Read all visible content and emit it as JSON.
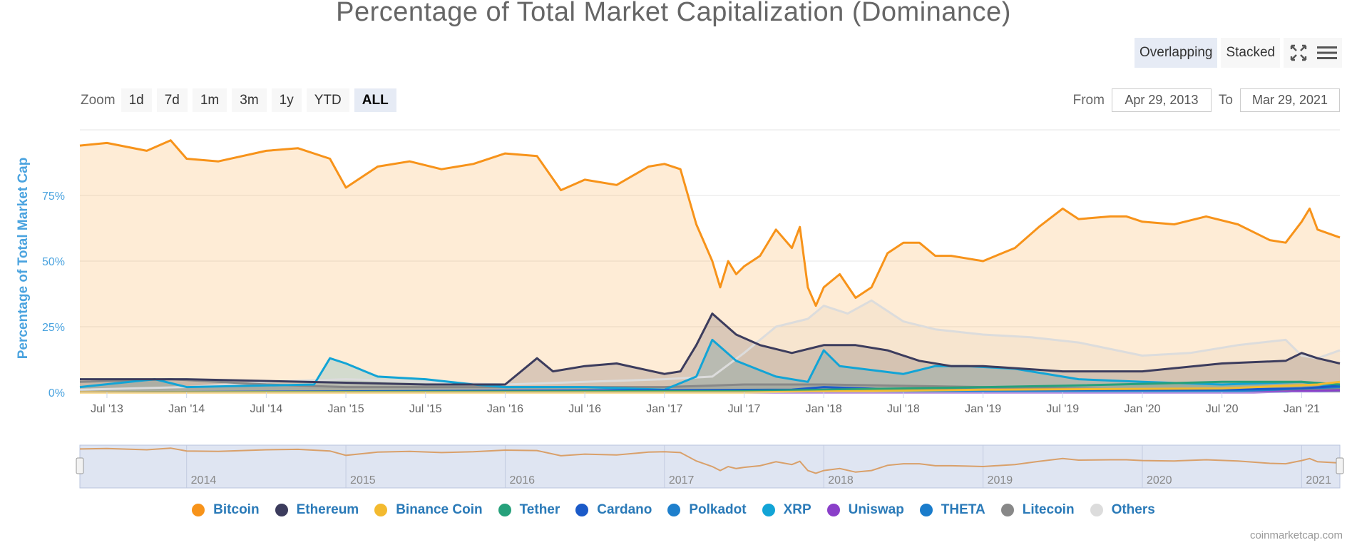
{
  "chart_data": {
    "type": "area",
    "title": "Percentage of Total Market Capitalization (Dominance)",
    "ylabel": "Percentage of Total Market Cap",
    "xlabel": "",
    "ylim": [
      0,
      100
    ],
    "yticks": [
      "0%",
      "25%",
      "50%",
      "75%"
    ],
    "xticks": [
      "Jul '13",
      "Jan '14",
      "Jul '14",
      "Jan '15",
      "Jul '15",
      "Jan '16",
      "Jul '16",
      "Jan '17",
      "Jul '17",
      "Jan '18",
      "Jul '18",
      "Jan '19",
      "Jul '19",
      "Jan '20",
      "Jul '20",
      "Jan '21"
    ],
    "x_range": [
      "Apr 29, 2013",
      "Mar 29, 2021"
    ],
    "series": [
      {
        "name": "Bitcoin",
        "color": "#f7931a",
        "x": [
          2013.33,
          2013.5,
          2013.75,
          2013.9,
          2014.0,
          2014.2,
          2014.5,
          2014.7,
          2014.9,
          2015.0,
          2015.2,
          2015.4,
          2015.6,
          2015.8,
          2016.0,
          2016.2,
          2016.35,
          2016.5,
          2016.7,
          2016.9,
          2017.0,
          2017.1,
          2017.2,
          2017.3,
          2017.35,
          2017.4,
          2017.45,
          2017.5,
          2017.6,
          2017.7,
          2017.8,
          2017.85,
          2017.9,
          2017.95,
          2018.0,
          2018.1,
          2018.2,
          2018.3,
          2018.4,
          2018.5,
          2018.6,
          2018.7,
          2018.8,
          2018.9,
          2019.0,
          2019.2,
          2019.35,
          2019.5,
          2019.6,
          2019.8,
          2019.9,
          2020.0,
          2020.2,
          2020.4,
          2020.6,
          2020.8,
          2020.9,
          2021.0,
          2021.05,
          2021.1,
          2021.24
        ],
        "y": [
          94,
          95,
          92,
          96,
          89,
          88,
          92,
          93,
          89,
          78,
          86,
          88,
          85,
          87,
          91,
          90,
          77,
          81,
          79,
          86,
          87,
          85,
          64,
          50,
          40,
          50,
          45,
          48,
          52,
          62,
          55,
          63,
          40,
          33,
          40,
          45,
          36,
          40,
          53,
          57,
          57,
          52,
          52,
          51,
          50,
          55,
          63,
          70,
          66,
          67,
          67,
          65,
          64,
          67,
          64,
          58,
          57,
          65,
          70,
          62,
          59
        ]
      },
      {
        "name": "Ethereum",
        "color": "#3c3c5d",
        "x": [
          2013.33,
          2014.0,
          2015.5,
          2016.0,
          2016.2,
          2016.3,
          2016.5,
          2016.7,
          2017.0,
          2017.1,
          2017.2,
          2017.3,
          2017.45,
          2017.6,
          2017.8,
          2018.0,
          2018.2,
          2018.4,
          2018.6,
          2018.8,
          2019.0,
          2019.5,
          2020.0,
          2020.5,
          2020.9,
          2021.0,
          2021.1,
          2021.24
        ],
        "y": [
          5,
          5,
          3,
          3,
          13,
          8,
          10,
          11,
          7,
          8,
          18,
          30,
          22,
          18,
          15,
          18,
          18,
          16,
          12,
          10,
          10,
          8,
          8,
          11,
          12,
          15,
          13,
          11
        ]
      },
      {
        "name": "Binance Coin",
        "color": "#f3ba2f",
        "x": [
          2013.33,
          2017.5,
          2019.0,
          2020.5,
          2021.1,
          2021.24
        ],
        "y": [
          0,
          0,
          1,
          1.5,
          3,
          4
        ]
      },
      {
        "name": "Tether",
        "color": "#26a17b",
        "x": [
          2013.33,
          2017.5,
          2018.5,
          2019.5,
          2020.5,
          2021.0,
          2021.24
        ],
        "y": [
          0,
          0.5,
          1.5,
          2.5,
          4,
          4,
          3
        ]
      },
      {
        "name": "Cardano",
        "color": "#1b5ac8",
        "x": [
          2013.33,
          2017.8,
          2018.0,
          2018.5,
          2020.5,
          2021.0,
          2021.24
        ],
        "y": [
          0,
          1,
          2,
          1,
          1,
          1.5,
          2.5
        ]
      },
      {
        "name": "Polkadot",
        "color": "#1e7fcc",
        "x": [
          2013.33,
          2020.6,
          2021.0,
          2021.24
        ],
        "y": [
          0,
          0.5,
          1.5,
          2
        ]
      },
      {
        "name": "XRP",
        "color": "#12a4d6",
        "x": [
          2013.33,
          2013.8,
          2014.0,
          2014.8,
          2014.9,
          2015.0,
          2015.2,
          2015.5,
          2015.8,
          2016.0,
          2016.5,
          2017.0,
          2017.2,
          2017.3,
          2017.45,
          2017.7,
          2017.9,
          2018.0,
          2018.1,
          2018.5,
          2018.7,
          2018.9,
          2019.2,
          2019.6,
          2020.0,
          2020.5,
          2021.0,
          2021.24
        ],
        "y": [
          2,
          5,
          2,
          3,
          13,
          11,
          6,
          5,
          3,
          2,
          2,
          1,
          6,
          20,
          12,
          6,
          4,
          16,
          10,
          7,
          10,
          10,
          9,
          5,
          4,
          3,
          4,
          2
        ]
      },
      {
        "name": "Uniswap",
        "color": "#8a3fc9",
        "x": [
          2013.33,
          2020.7,
          2021.24
        ],
        "y": [
          0,
          0,
          0.8
        ]
      },
      {
        "name": "THETA",
        "color": "#1a7ccb",
        "x": [
          2013.33,
          2020.9,
          2021.24
        ],
        "y": [
          0,
          0.2,
          0.8
        ]
      },
      {
        "name": "Litecoin",
        "color": "#888888",
        "x": [
          2013.33,
          2013.9,
          2014.5,
          2015.0,
          2016.0,
          2017.0,
          2017.5,
          2018.0,
          2019.0,
          2020.0,
          2021.24
        ],
        "y": [
          4,
          5,
          3,
          2,
          2,
          2,
          3,
          3,
          2,
          1,
          1
        ]
      },
      {
        "name": "Others",
        "color": "#dcdcdc",
        "x": [
          2013.33,
          2014.0,
          2014.5,
          2015.0,
          2015.5,
          2016.0,
          2016.5,
          2017.0,
          2017.3,
          2017.5,
          2017.7,
          2017.9,
          2018.0,
          2018.15,
          2018.3,
          2018.5,
          2018.7,
          2019.0,
          2019.3,
          2019.6,
          2020.0,
          2020.3,
          2020.6,
          2020.9,
          2021.0,
          2021.1,
          2021.24
        ],
        "y": [
          1,
          2,
          4,
          5,
          4,
          3,
          4,
          5,
          6,
          15,
          25,
          28,
          33,
          30,
          35,
          27,
          24,
          22,
          21,
          19,
          14,
          15,
          18,
          20,
          14,
          13,
          16
        ]
      }
    ]
  },
  "controls": {
    "overlapping_label": "Overlapping",
    "stacked_label": "Stacked",
    "zoom_label": "Zoom",
    "zoom_options": [
      "1d",
      "7d",
      "1m",
      "3m",
      "1y",
      "YTD",
      "ALL"
    ],
    "from_label": "From",
    "from_value": "Apr 29, 2013",
    "to_label": "To",
    "to_value": "Mar 29, 2021"
  },
  "navigator": {
    "years": [
      "2014",
      "2015",
      "2016",
      "2017",
      "2018",
      "2019",
      "2020",
      "2021"
    ]
  },
  "credits": "coinmarketcap.com"
}
